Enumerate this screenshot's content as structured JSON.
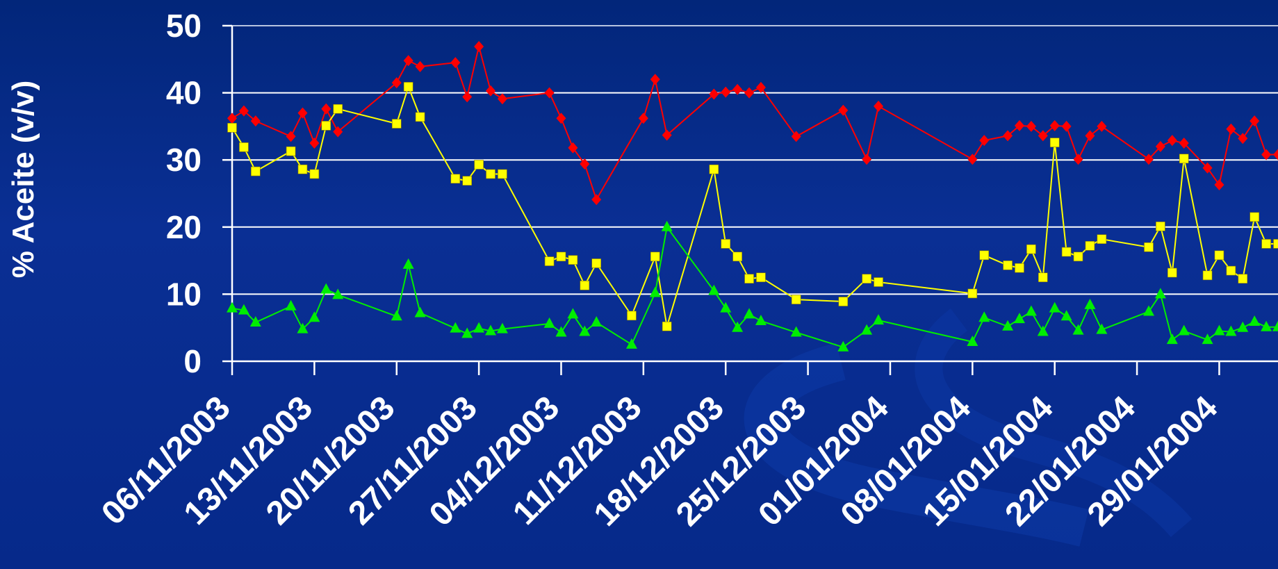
{
  "chart_data": {
    "type": "line",
    "title": "",
    "xlabel": "",
    "ylabel": "% Aceite (v/v)",
    "ylim": [
      0,
      50
    ],
    "yticks": [
      "0",
      "10",
      "20",
      "30",
      "40",
      "50"
    ],
    "x_date_range": [
      "06/11/2003",
      "03/02/2004"
    ],
    "xticks": [
      "06/11/2003",
      "13/11/2003",
      "20/11/2003",
      "27/11/2003",
      "04/12/2003",
      "11/12/2003",
      "18/12/2003",
      "25/12/2003",
      "01/01/2004",
      "08/01/2004",
      "15/01/2004",
      "22/01/2004",
      "29/01/2004"
    ],
    "grid": true,
    "legend": "none",
    "series": [
      {
        "color": "#ff0000",
        "marker": "diamond",
        "points": [
          [
            "06/11/2003",
            36.2
          ],
          [
            "07/11/2003",
            37.3
          ],
          [
            "08/11/2003",
            35.8
          ],
          [
            "11/11/2003",
            33.5
          ],
          [
            "12/11/2003",
            37.0
          ],
          [
            "13/11/2003",
            32.5
          ],
          [
            "14/11/2003",
            37.6
          ],
          [
            "15/11/2003",
            34.2
          ],
          [
            "20/11/2003",
            41.5
          ],
          [
            "21/11/2003",
            44.8
          ],
          [
            "22/11/2003",
            43.9
          ],
          [
            "25/11/2003",
            44.5
          ],
          [
            "26/11/2003",
            39.4
          ],
          [
            "27/11/2003",
            46.9
          ],
          [
            "28/11/2003",
            40.3
          ],
          [
            "29/11/2003",
            39.1
          ],
          [
            "03/12/2003",
            40.0
          ],
          [
            "04/12/2003",
            36.2
          ],
          [
            "05/12/2003",
            31.8
          ],
          [
            "06/12/2003",
            29.4
          ],
          [
            "07/12/2003",
            24.1
          ],
          [
            "11/12/2003",
            36.2
          ],
          [
            "12/12/2003",
            42.0
          ],
          [
            "13/12/2003",
            33.7
          ],
          [
            "17/12/2003",
            39.8
          ],
          [
            "18/12/2003",
            40.1
          ],
          [
            "19/12/2003",
            40.5
          ],
          [
            "20/12/2003",
            40.0
          ],
          [
            "21/12/2003",
            40.8
          ],
          [
            "24/12/2003",
            33.5
          ],
          [
            "28/12/2003",
            37.4
          ],
          [
            "30/12/2003",
            30.1
          ],
          [
            "31/12/2003",
            38.0
          ],
          [
            "08/01/2004",
            30.1
          ],
          [
            "09/01/2004",
            32.9
          ],
          [
            "11/01/2004",
            33.6
          ],
          [
            "12/01/2004",
            35.1
          ],
          [
            "13/01/2004",
            35.0
          ],
          [
            "14/01/2004",
            33.6
          ],
          [
            "15/01/2004",
            35.1
          ],
          [
            "16/01/2004",
            35.0
          ],
          [
            "17/01/2004",
            30.1
          ],
          [
            "18/01/2004",
            33.6
          ],
          [
            "19/01/2004",
            35.0
          ],
          [
            "23/01/2004",
            30.1
          ],
          [
            "24/01/2004",
            32.0
          ],
          [
            "25/01/2004",
            32.9
          ],
          [
            "26/01/2004",
            32.5
          ],
          [
            "28/01/2004",
            28.8
          ],
          [
            "29/01/2004",
            26.3
          ],
          [
            "30/01/2004",
            34.6
          ],
          [
            "31/01/2004",
            33.2
          ],
          [
            "01/02/2004",
            35.8
          ],
          [
            "02/02/2004",
            30.8
          ],
          [
            "03/02/2004",
            30.8
          ]
        ]
      },
      {
        "color": "#ffff00",
        "marker": "square",
        "points": [
          [
            "06/11/2003",
            34.8
          ],
          [
            "07/11/2003",
            31.9
          ],
          [
            "08/11/2003",
            28.3
          ],
          [
            "11/11/2003",
            31.3
          ],
          [
            "12/11/2003",
            28.6
          ],
          [
            "13/11/2003",
            27.9
          ],
          [
            "14/11/2003",
            35.1
          ],
          [
            "15/11/2003",
            37.6
          ],
          [
            "20/11/2003",
            35.4
          ],
          [
            "21/11/2003",
            40.9
          ],
          [
            "22/11/2003",
            36.4
          ],
          [
            "25/11/2003",
            27.2
          ],
          [
            "26/11/2003",
            26.9
          ],
          [
            "27/11/2003",
            29.3
          ],
          [
            "28/11/2003",
            27.9
          ],
          [
            "29/11/2003",
            27.9
          ],
          [
            "03/12/2003",
            14.9
          ],
          [
            "04/12/2003",
            15.6
          ],
          [
            "05/12/2003",
            15.1
          ],
          [
            "06/12/2003",
            11.3
          ],
          [
            "07/12/2003",
            14.6
          ],
          [
            "10/12/2003",
            6.8
          ],
          [
            "12/12/2003",
            15.6
          ],
          [
            "13/12/2003",
            5.2
          ],
          [
            "17/12/2003",
            28.6
          ],
          [
            "18/12/2003",
            17.5
          ],
          [
            "19/12/2003",
            15.6
          ],
          [
            "20/12/2003",
            12.3
          ],
          [
            "21/12/2003",
            12.5
          ],
          [
            "24/12/2003",
            9.2
          ],
          [
            "28/12/2003",
            8.9
          ],
          [
            "30/12/2003",
            12.3
          ],
          [
            "31/12/2003",
            11.8
          ],
          [
            "08/01/2004",
            10.1
          ],
          [
            "09/01/2004",
            15.8
          ],
          [
            "11/01/2004",
            14.3
          ],
          [
            "12/01/2004",
            13.9
          ],
          [
            "13/01/2004",
            16.7
          ],
          [
            "14/01/2004",
            12.5
          ],
          [
            "15/01/2004",
            32.6
          ],
          [
            "16/01/2004",
            16.3
          ],
          [
            "17/01/2004",
            15.6
          ],
          [
            "18/01/2004",
            17.2
          ],
          [
            "19/01/2004",
            18.2
          ],
          [
            "23/01/2004",
            17.0
          ],
          [
            "24/01/2004",
            20.1
          ],
          [
            "25/01/2004",
            13.2
          ],
          [
            "26/01/2004",
            30.2
          ],
          [
            "28/01/2004",
            12.8
          ],
          [
            "29/01/2004",
            15.8
          ],
          [
            "30/01/2004",
            13.5
          ],
          [
            "31/01/2004",
            12.3
          ],
          [
            "01/02/2004",
            21.5
          ],
          [
            "02/02/2004",
            17.5
          ],
          [
            "03/02/2004",
            17.5
          ]
        ]
      },
      {
        "color": "#00ee00",
        "marker": "triangle",
        "points": [
          [
            "06/11/2003",
            7.9
          ],
          [
            "07/11/2003",
            7.6
          ],
          [
            "08/11/2003",
            5.8
          ],
          [
            "11/11/2003",
            8.2
          ],
          [
            "12/11/2003",
            4.8
          ],
          [
            "13/11/2003",
            6.5
          ],
          [
            "14/11/2003",
            10.7
          ],
          [
            "15/11/2003",
            9.9
          ],
          [
            "20/11/2003",
            6.7
          ],
          [
            "21/11/2003",
            14.4
          ],
          [
            "22/11/2003",
            7.2
          ],
          [
            "25/11/2003",
            4.9
          ],
          [
            "26/11/2003",
            4.1
          ],
          [
            "27/11/2003",
            4.9
          ],
          [
            "28/11/2003",
            4.5
          ],
          [
            "29/11/2003",
            4.8
          ],
          [
            "03/12/2003",
            5.6
          ],
          [
            "04/12/2003",
            4.3
          ],
          [
            "05/12/2003",
            7.0
          ],
          [
            "06/12/2003",
            4.4
          ],
          [
            "07/12/2003",
            5.8
          ],
          [
            "10/12/2003",
            2.5
          ],
          [
            "12/12/2003",
            10.2
          ],
          [
            "13/12/2003",
            20.0
          ],
          [
            "17/12/2003",
            10.5
          ],
          [
            "18/12/2003",
            7.9
          ],
          [
            "19/12/2003",
            5.0
          ],
          [
            "20/12/2003",
            7.0
          ],
          [
            "21/12/2003",
            6.0
          ],
          [
            "24/12/2003",
            4.3
          ],
          [
            "28/12/2003",
            2.1
          ],
          [
            "30/12/2003",
            4.6
          ],
          [
            "31/12/2003",
            6.1
          ],
          [
            "08/01/2004",
            2.9
          ],
          [
            "09/01/2004",
            6.5
          ],
          [
            "11/01/2004",
            5.2
          ],
          [
            "12/01/2004",
            6.3
          ],
          [
            "13/01/2004",
            7.4
          ],
          [
            "14/01/2004",
            4.4
          ],
          [
            "15/01/2004",
            7.9
          ],
          [
            "16/01/2004",
            6.7
          ],
          [
            "17/01/2004",
            4.6
          ],
          [
            "18/01/2004",
            8.4
          ],
          [
            "19/01/2004",
            4.7
          ],
          [
            "23/01/2004",
            7.4
          ],
          [
            "24/01/2004",
            10.0
          ],
          [
            "25/01/2004",
            3.2
          ],
          [
            "26/01/2004",
            4.5
          ],
          [
            "28/01/2004",
            3.2
          ],
          [
            "29/01/2004",
            4.5
          ],
          [
            "30/01/2004",
            4.4
          ],
          [
            "31/01/2004",
            5.0
          ],
          [
            "01/02/2004",
            5.9
          ],
          [
            "02/02/2004",
            5.1
          ],
          [
            "03/02/2004",
            5.1
          ]
        ]
      }
    ]
  }
}
